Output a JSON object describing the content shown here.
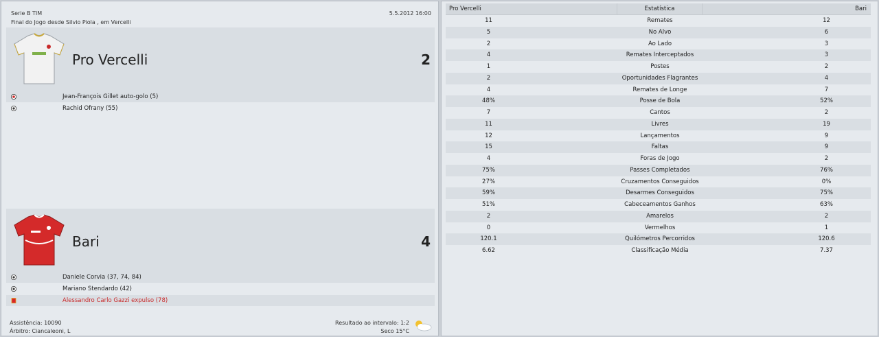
{
  "match": {
    "competition": "Serie B TIM",
    "date": "5.5.2012 16:00",
    "venue": "Final do Jogo desde Silvio Piola , em Vercelli",
    "attendance": "Assistência: 10090",
    "referee": "Árbitro: Ciancaleoni, L",
    "halftime": "Resultado ao intervalo: 1:2",
    "weather": "Seco 15°C"
  },
  "home": {
    "name": "Pro Vercelli",
    "score": "2",
    "shirt_color": "#f2f2f2",
    "events": [
      {
        "text": "Jean-François Gillet auto-golo (5)",
        "icon": "own-goal-icon"
      },
      {
        "text": "Rachid Ofrany (55)",
        "icon": "ball-icon"
      }
    ]
  },
  "away": {
    "name": "Bari",
    "score": "4",
    "shirt_color": "#d42a2a",
    "events": [
      {
        "text": "Daniele Corvia (37, 74, 84)",
        "icon": "ball-icon"
      },
      {
        "text": "Mariano Stendardo (42)",
        "icon": "ball-icon"
      },
      {
        "text": "Alessandro Carlo Gazzi expulso (78)",
        "icon": "red-card-icon"
      }
    ]
  },
  "stats": {
    "header": {
      "home": "Pro Vercelli",
      "label": "Estatística",
      "away": "Bari"
    },
    "rows": [
      {
        "label": "Remates",
        "home": "11",
        "away": "12"
      },
      {
        "label": "No Alvo",
        "home": "5",
        "away": "6"
      },
      {
        "label": "Ao Lado",
        "home": "2",
        "away": "3"
      },
      {
        "label": "Remates Interceptados",
        "home": "4",
        "away": "3"
      },
      {
        "label": "Postes",
        "home": "1",
        "away": "2"
      },
      {
        "label": "Oportunidades Flagrantes",
        "home": "2",
        "away": "4"
      },
      {
        "label": "Remates de Longe",
        "home": "4",
        "away": "7"
      },
      {
        "label": "Posse de Bola",
        "home": "48%",
        "away": "52%"
      },
      {
        "label": "Cantos",
        "home": "7",
        "away": "2"
      },
      {
        "label": "Livres",
        "home": "11",
        "away": "19"
      },
      {
        "label": "Lançamentos",
        "home": "12",
        "away": "9"
      },
      {
        "label": "Faltas",
        "home": "15",
        "away": "9"
      },
      {
        "label": "Foras de Jogo",
        "home": "4",
        "away": "2"
      },
      {
        "label": "Passes Completados",
        "home": "75%",
        "away": "76%"
      },
      {
        "label": "Cruzamentos Conseguidos",
        "home": "27%",
        "away": "0%"
      },
      {
        "label": "Desarmes Conseguidos",
        "home": "59%",
        "away": "75%"
      },
      {
        "label": "Cabeceamentos Ganhos",
        "home": "51%",
        "away": "63%"
      },
      {
        "label": "Amarelos",
        "home": "2",
        "away": "2"
      },
      {
        "label": "Vermelhos",
        "home": "0",
        "away": "1"
      },
      {
        "label": "Quilómetros Percorridos",
        "home": "120.1",
        "away": "120.6"
      },
      {
        "label": "Classificação Média",
        "home": "6.62",
        "away": "7.37"
      }
    ]
  }
}
